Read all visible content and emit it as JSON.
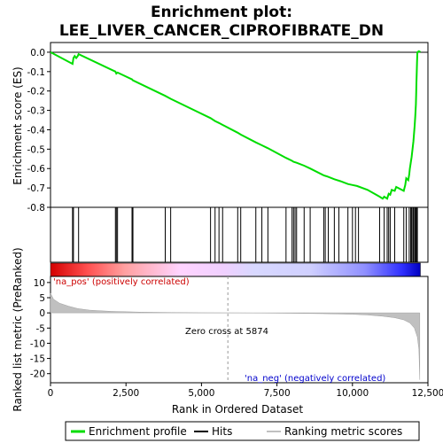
{
  "chart_data": {
    "type": "line",
    "title_line1": "Enrichment plot:",
    "title_line2": "LEE_LIVER_CANCER_CIPROFIBRATE_DN",
    "top_panel": {
      "ylabel": "Enrichment score (ES)",
      "ylim": [
        -0.8,
        0.05
      ],
      "yticks": [
        0.0,
        -0.1,
        -0.2,
        -0.3,
        -0.4,
        -0.5,
        -0.6,
        -0.7,
        -0.8
      ],
      "ytick_labels": [
        "0.0",
        "-0.1",
        "-0.2",
        "-0.3",
        "-0.4",
        "-0.5",
        "-0.6",
        "-0.7",
        "-0.8"
      ],
      "series_name": "Enrichment profile",
      "color": "#00dd00",
      "points": [
        [
          0,
          0.0
        ],
        [
          730,
          -0.06
        ],
        [
          760,
          -0.03
        ],
        [
          800,
          -0.02
        ],
        [
          850,
          -0.03
        ],
        [
          900,
          -0.02
        ],
        [
          930,
          -0.01
        ],
        [
          2150,
          -0.1
        ],
        [
          2180,
          -0.11
        ],
        [
          2220,
          -0.105
        ],
        [
          2700,
          -0.14
        ],
        [
          2730,
          -0.145
        ],
        [
          3800,
          -0.225
        ],
        [
          3980,
          -0.24
        ],
        [
          5300,
          -0.34
        ],
        [
          5450,
          -0.355
        ],
        [
          5580,
          -0.365
        ],
        [
          5700,
          -0.375
        ],
        [
          6200,
          -0.415
        ],
        [
          6300,
          -0.425
        ],
        [
          6800,
          -0.465
        ],
        [
          7000,
          -0.48
        ],
        [
          7200,
          -0.495
        ],
        [
          7800,
          -0.545
        ],
        [
          8000,
          -0.56
        ],
        [
          8050,
          -0.565
        ],
        [
          8150,
          -0.57
        ],
        [
          8400,
          -0.585
        ],
        [
          8600,
          -0.6
        ],
        [
          9050,
          -0.635
        ],
        [
          9150,
          -0.64
        ],
        [
          9400,
          -0.655
        ],
        [
          9600,
          -0.665
        ],
        [
          9850,
          -0.68
        ],
        [
          10000,
          -0.685
        ],
        [
          10150,
          -0.69
        ],
        [
          10500,
          -0.71
        ],
        [
          10900,
          -0.745
        ],
        [
          11000,
          -0.755
        ],
        [
          11050,
          -0.745
        ],
        [
          11150,
          -0.755
        ],
        [
          11200,
          -0.73
        ],
        [
          11250,
          -0.735
        ],
        [
          11300,
          -0.71
        ],
        [
          11400,
          -0.715
        ],
        [
          11450,
          -0.695
        ],
        [
          11700,
          -0.715
        ],
        [
          11750,
          -0.685
        ],
        [
          11780,
          -0.65
        ],
        [
          11850,
          -0.66
        ],
        [
          11880,
          -0.63
        ],
        [
          11900,
          -0.6
        ],
        [
          11930,
          -0.57
        ],
        [
          11960,
          -0.54
        ],
        [
          11990,
          -0.5
        ],
        [
          12020,
          -0.46
        ],
        [
          12040,
          -0.42
        ],
        [
          12060,
          -0.38
        ],
        [
          12080,
          -0.33
        ],
        [
          12100,
          -0.27
        ],
        [
          12110,
          -0.22
        ],
        [
          12120,
          -0.16
        ],
        [
          12130,
          -0.1
        ],
        [
          12140,
          -0.05
        ],
        [
          12150,
          0.0
        ],
        [
          12200,
          0.005
        ],
        [
          12250,
          0.0
        ]
      ]
    },
    "hits": [
      730,
      760,
      930,
      2150,
      2180,
      2220,
      2700,
      2730,
      3800,
      3980,
      5300,
      5450,
      5580,
      5700,
      6200,
      6300,
      6800,
      7000,
      7200,
      7800,
      8000,
      8050,
      8100,
      8150,
      8400,
      8600,
      9050,
      9100,
      9200,
      9400,
      9550,
      9850,
      10000,
      10100,
      10200,
      10900,
      11050,
      11150,
      11200,
      11250,
      11400,
      11700,
      11780,
      11880,
      11930,
      11960,
      12000,
      12020,
      12060,
      12080,
      12110,
      12130,
      12150
    ],
    "bottom_panel": {
      "ylabel": "Ranked list metric (PreRanked)",
      "xlabel": "Rank in Ordered Dataset",
      "ylim": [
        -23,
        12
      ],
      "yticks": [
        10,
        5,
        0,
        -5,
        -10,
        -15,
        -20
      ],
      "ytick_labels": [
        "10",
        "5",
        "0",
        "-5",
        "-10",
        "-15",
        "-20"
      ],
      "xlim": [
        0,
        12500
      ],
      "xticks": [
        0,
        2500,
        5000,
        7500,
        10000,
        12500
      ],
      "xtick_labels": [
        "0",
        "2,500",
        "5,000",
        "7,500",
        "10,000",
        "12,500"
      ],
      "metric_curve": [
        [
          0,
          6.5
        ],
        [
          100,
          4.5
        ],
        [
          300,
          3.2
        ],
        [
          600,
          2.2
        ],
        [
          900,
          1.4
        ],
        [
          1300,
          0.9
        ],
        [
          2000,
          0.5
        ],
        [
          3000,
          0.25
        ],
        [
          4000,
          0.12
        ],
        [
          5000,
          0.05
        ],
        [
          5874,
          0.0
        ],
        [
          7000,
          -0.05
        ],
        [
          8000,
          -0.12
        ],
        [
          9000,
          -0.25
        ],
        [
          10000,
          -0.45
        ],
        [
          10500,
          -0.7
        ],
        [
          11000,
          -1.1
        ],
        [
          11400,
          -1.6
        ],
        [
          11700,
          -2.3
        ],
        [
          11900,
          -3.3
        ],
        [
          12050,
          -5.0
        ],
        [
          12150,
          -8.0
        ],
        [
          12200,
          -12.0
        ],
        [
          12230,
          -22.0
        ]
      ],
      "zero_cross_label": "Zero cross at 5874",
      "zero_cross": 5874,
      "pos_label": "'na_pos' (positively correlated)",
      "neg_label": "'na_neg' (negatively correlated)"
    },
    "legend": [
      {
        "label": "Enrichment profile",
        "color": "#00dd00"
      },
      {
        "label": "Hits",
        "color": "#000000"
      },
      {
        "label": "Ranking metric scores",
        "color": "#c0c0c0"
      }
    ]
  }
}
